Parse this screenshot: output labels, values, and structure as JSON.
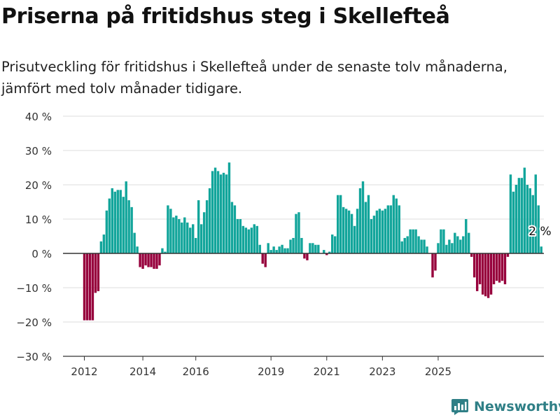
{
  "header": {
    "title": "Priserna på fritidshus steg i Skellefteå",
    "subtitle": "Prisutveckling för fritidshus i Skellefteå under de senaste tolv månaderna, jämfört med tolv månader tidigare."
  },
  "brand": {
    "name": "Newsworthy",
    "icon": "bar-chart-logo-icon"
  },
  "colors": {
    "positive": "#12a59b",
    "negative": "#97003c",
    "grid": "#dddddd",
    "zero_line": "#333333",
    "text": "#333333"
  },
  "chart_data": {
    "type": "bar",
    "y_ticks": [
      -30,
      -20,
      -10,
      0,
      10,
      20,
      30,
      40
    ],
    "y_tick_labels": [
      "−30 %",
      "−20 %",
      "−10 %",
      "0 %",
      "10 %",
      "20 %",
      "30 %",
      "40 %"
    ],
    "ylim": [
      -30,
      40
    ],
    "x_tick_labels": [
      "2012",
      "2014",
      "2016",
      "2019",
      "2021",
      "2023",
      "2025"
    ],
    "x_tick_positions": [
      0,
      21,
      40,
      67,
      87,
      107,
      127
    ],
    "grid": true,
    "last_value_label": "2 %",
    "values": [
      -19.5,
      -19.5,
      -19.5,
      -19.5,
      -11.5,
      -11.0,
      3.5,
      5.5,
      12.5,
      16.0,
      19.0,
      18.0,
      18.5,
      18.5,
      16.5,
      21.0,
      15.5,
      13.5,
      6.0,
      2.0,
      -4.0,
      -4.5,
      -3.5,
      -4.0,
      -4.0,
      -4.5,
      -4.5,
      -3.5,
      1.5,
      0.5,
      14.0,
      13.0,
      10.5,
      11.0,
      10.0,
      9.0,
      10.5,
      9.0,
      7.5,
      8.5,
      4.5,
      15.5,
      8.5,
      12.0,
      15.5,
      19.0,
      24.0,
      25.0,
      24.0,
      23.0,
      23.5,
      23.0,
      26.5,
      15.0,
      14.0,
      10.0,
      10.0,
      8.0,
      7.5,
      7.0,
      7.5,
      8.5,
      8.0,
      2.5,
      -3.0,
      -4.0,
      3.0,
      1.0,
      2.0,
      1.0,
      2.0,
      2.5,
      1.5,
      1.5,
      4.0,
      4.5,
      11.5,
      12.0,
      4.5,
      -1.5,
      -2.0,
      3.0,
      3.0,
      2.5,
      2.5,
      0.0,
      1.0,
      -0.5,
      0.5,
      5.5,
      5.0,
      17.0,
      17.0,
      13.5,
      13.0,
      12.5,
      11.5,
      8.0,
      13.0,
      19.0,
      21.0,
      15.0,
      17.0,
      10.0,
      11.0,
      12.5,
      13.0,
      12.5,
      13.0,
      14.0,
      14.0,
      17.0,
      16.0,
      14.0,
      3.5,
      4.5,
      5.0,
      7.0,
      7.0,
      7.0,
      5.0,
      4.0,
      4.0,
      2.0,
      0.0,
      -7.0,
      -5.0,
      3.0,
      7.0,
      7.0,
      2.5,
      4.0,
      3.0,
      6.0,
      5.0,
      4.0,
      5.0,
      10.0,
      6.0,
      -1.0,
      -7.0,
      -11.0,
      -9.0,
      -12.0,
      -12.5,
      -13.0,
      -12.0,
      -9.0,
      -8.0,
      -8.5,
      -8.0,
      -9.0,
      -1.0,
      23.0,
      18.0,
      20.0,
      22.0,
      22.0,
      25.0,
      20.0,
      19.0,
      17.0,
      23.0,
      14.0,
      2.0
    ]
  }
}
